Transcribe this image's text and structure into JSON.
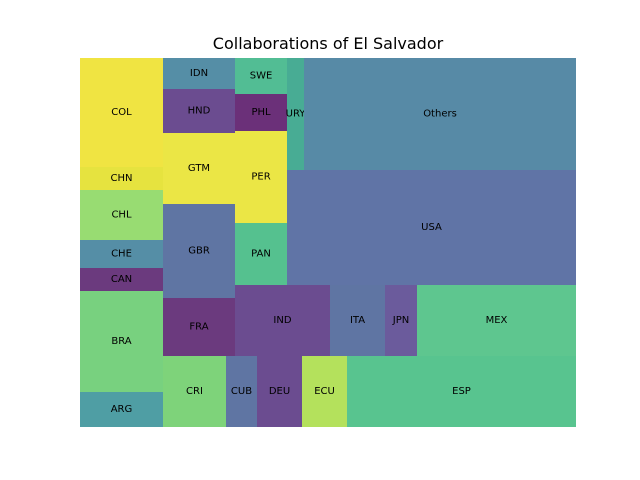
{
  "chart_data": {
    "type": "treemap",
    "title": "Collaborations of El Salvador",
    "cells": [
      {
        "label": "COL",
        "color": "#f0e442"
      },
      {
        "label": "CHN",
        "color": "#e6e33f"
      },
      {
        "label": "CHL",
        "color": "#98dc72"
      },
      {
        "label": "CHE",
        "color": "#558ea6"
      },
      {
        "label": "CAN",
        "color": "#6b3a7e"
      },
      {
        "label": "BRA",
        "color": "#78d17f"
      },
      {
        "label": "ARG",
        "color": "#4f9ea4"
      },
      {
        "label": "IDN",
        "color": "#558ea6"
      },
      {
        "label": "HND",
        "color": "#6b4c90"
      },
      {
        "label": "GTM",
        "color": "#ebe645"
      },
      {
        "label": "GBR",
        "color": "#5f75a3"
      },
      {
        "label": "FRA",
        "color": "#6b3a7e"
      },
      {
        "label": "CRI",
        "color": "#7ed37a"
      },
      {
        "label": "SWE",
        "color": "#52bd94"
      },
      {
        "label": "PHL",
        "color": "#6b3079"
      },
      {
        "label": "PER",
        "color": "#ebe645"
      },
      {
        "label": "PAN",
        "color": "#55c18f"
      },
      {
        "label": "CUB",
        "color": "#5f75a3"
      },
      {
        "label": "DEU",
        "color": "#6b4c90"
      },
      {
        "label": "URY",
        "color": "#48ac94"
      },
      {
        "label": "Others",
        "color": "#578aa6"
      },
      {
        "label": "USA",
        "color": "#6074a6"
      },
      {
        "label": "IND",
        "color": "#6b4c90"
      },
      {
        "label": "ITA",
        "color": "#5f75a3"
      },
      {
        "label": "JPN",
        "color": "#6b5b9c"
      },
      {
        "label": "MEX",
        "color": "#5ec68f"
      },
      {
        "label": "ECU",
        "color": "#b4e15c"
      },
      {
        "label": "ESP",
        "color": "#58c48f"
      }
    ]
  }
}
